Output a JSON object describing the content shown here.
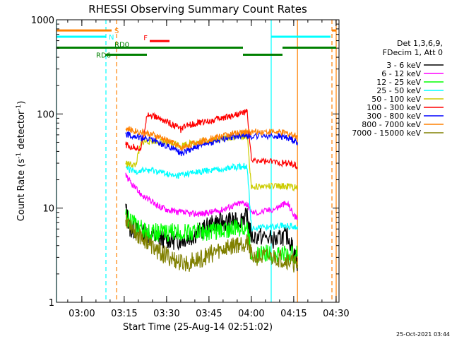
{
  "chart_data": {
    "type": "line",
    "title": "RHESSI Observing Summary Count Rates",
    "xlabel": "Start Time (25-Aug-14 02:51:02)",
    "ylabel_main": "Count Rate (s",
    "ylabel_sup1": "-1",
    "ylabel_mid": " detector",
    "ylabel_sup2": "-1",
    "ylabel_end": ")",
    "yscale": "log",
    "ylim": [
      1,
      1000
    ],
    "xlim_minutes": [
      0,
      100
    ],
    "x_ticks": [
      {
        "label": "03:00",
        "minutes": 8.97
      },
      {
        "label": "03:15",
        "minutes": 23.97
      },
      {
        "label": "03:30",
        "minutes": 38.97
      },
      {
        "label": "03:45",
        "minutes": 53.97
      },
      {
        "label": "04:00",
        "minutes": 68.97
      },
      {
        "label": "04:15",
        "minutes": 83.97
      },
      {
        "label": "04:30",
        "minutes": 98.97
      }
    ],
    "y_ticks": [
      {
        "label": "1",
        "value": 1
      },
      {
        "label": "10",
        "value": 10
      },
      {
        "label": "100",
        "value": 100
      },
      {
        "label": "1000",
        "value": 1000
      }
    ],
    "legend_header": [
      "Det 1,3,6,9,",
      "FDecim 1, Att 0"
    ],
    "legend_placement": "right",
    "footer_date": "25-Oct-2021 03:44",
    "series": [
      {
        "name": "3 - 6 keV",
        "color": "#000000",
        "x": [
          24.5,
          26,
          28,
          30,
          32,
          34,
          36,
          38,
          40,
          42,
          44,
          46,
          48,
          50,
          52,
          54,
          56,
          58,
          60,
          62,
          64,
          66,
          67.5,
          69,
          72,
          75,
          78,
          80,
          82,
          84,
          85.3
        ],
        "y": [
          10,
          6,
          5.8,
          5.5,
          5.2,
          5,
          4.8,
          4.7,
          4.6,
          4.5,
          4.6,
          4.8,
          5,
          5.5,
          6,
          6.5,
          7,
          7.2,
          7,
          7.5,
          7,
          8,
          8,
          5,
          5,
          4.8,
          4.5,
          5,
          5,
          3.5,
          2.5
        ]
      },
      {
        "name": "6 - 12 keV",
        "color": "#ff00ff",
        "x": [
          24.5,
          26,
          28,
          30,
          32,
          34,
          36,
          38,
          40,
          42,
          44,
          46,
          48,
          50,
          52,
          54,
          56,
          58,
          60,
          62,
          64,
          66,
          67.5,
          69,
          72,
          75,
          78,
          80,
          82,
          84,
          85.3
        ],
        "y": [
          23,
          19,
          16,
          14,
          12.5,
          11.5,
          10.5,
          10,
          9.5,
          9.2,
          9,
          8.8,
          8.7,
          8.7,
          8.8,
          9,
          9.2,
          9.5,
          10,
          10.5,
          11,
          11.5,
          11,
          9,
          9,
          9.5,
          10,
          11,
          11,
          8.5,
          7.5
        ]
      },
      {
        "name": "12 - 25 keV",
        "color": "#00ff00",
        "x": [
          24.5,
          26,
          28,
          30,
          32,
          34,
          36,
          38,
          40,
          42,
          44,
          46,
          48,
          50,
          52,
          54,
          56,
          58,
          60,
          62,
          64,
          66,
          67.5,
          69,
          72,
          75,
          78,
          80,
          82,
          84,
          85.3
        ],
        "y": [
          8,
          7.5,
          6.5,
          6,
          5.6,
          5.5,
          5.5,
          5.5,
          5.5,
          5.5,
          5.5,
          5.5,
          5.6,
          5.6,
          5.6,
          5.6,
          5.7,
          5.8,
          6,
          6,
          6.2,
          6.3,
          6.3,
          3.3,
          3.3,
          3.3,
          3.3,
          3.3,
          3.2,
          3.2,
          3.2
        ]
      },
      {
        "name": "25 - 50 keV",
        "color": "#00ffff",
        "x": [
          24.5,
          26,
          28,
          30,
          32,
          34,
          36,
          38,
          40,
          42,
          44,
          46,
          48,
          50,
          52,
          54,
          56,
          58,
          60,
          62,
          64,
          66,
          67.5,
          69,
          72,
          75,
          78,
          80,
          82,
          84,
          85.3
        ],
        "y": [
          27,
          25,
          24.5,
          25,
          25.5,
          25,
          24.5,
          23.5,
          22.5,
          21.5,
          22.5,
          23,
          23.5,
          24,
          24.5,
          25,
          25.5,
          26,
          26.5,
          27,
          27.5,
          28,
          28,
          6.2,
          6.2,
          6.3,
          6.4,
          6.5,
          6.4,
          6.4,
          6.4
        ]
      },
      {
        "name": "50 - 100 keV",
        "color": "#cccc00",
        "x": [
          24.5,
          26,
          28,
          30,
          32,
          34,
          36,
          38,
          40,
          42,
          44,
          46,
          48,
          50,
          52,
          54,
          56,
          58,
          60,
          62,
          64,
          66,
          67.5,
          69,
          72,
          75,
          78,
          80,
          82,
          84,
          85.3
        ],
        "y": [
          30,
          29,
          28.5,
          50,
          51,
          51.5,
          51,
          50,
          49,
          48.5,
          46,
          48,
          49,
          50,
          51,
          52,
          53,
          54,
          55,
          56,
          57,
          58,
          58,
          17,
          17,
          17,
          17,
          17,
          17,
          16.5,
          16.5
        ]
      },
      {
        "name": "100 - 300 keV",
        "color": "#ff0000",
        "x": [
          24.5,
          26,
          28,
          30,
          32,
          34,
          36,
          38,
          40,
          42,
          44,
          46,
          48,
          50,
          52,
          54,
          56,
          58,
          60,
          62,
          64,
          66,
          67.5,
          69,
          72,
          75,
          78,
          80,
          82,
          84,
          85.3
        ],
        "y": [
          47,
          45,
          44,
          42,
          100,
          95,
          90,
          85,
          80,
          75,
          68,
          75,
          78,
          80,
          82,
          84,
          87,
          90,
          93,
          96,
          100,
          103,
          105,
          32,
          32,
          31,
          31,
          30,
          30,
          29,
          27
        ]
      },
      {
        "name": "300 - 800 keV",
        "color": "#0000ff",
        "x": [
          24.5,
          26,
          28,
          30,
          32,
          34,
          36,
          38,
          40,
          42,
          44,
          46,
          48,
          50,
          52,
          54,
          56,
          58,
          60,
          62,
          64,
          66,
          67.5,
          69,
          72,
          75,
          78,
          80,
          82,
          84,
          85.3
        ],
        "y": [
          62,
          60,
          58,
          55,
          55,
          53,
          50,
          47,
          45,
          42,
          38,
          41,
          43,
          45,
          47,
          49,
          51,
          53,
          55,
          57,
          58,
          60,
          60,
          58,
          59,
          59,
          58,
          57,
          56,
          53,
          50
        ]
      },
      {
        "name": "800 - 7000 keV",
        "color": "#ff8000",
        "x": [
          24.5,
          26,
          28,
          30,
          32,
          34,
          36,
          38,
          40,
          42,
          44,
          46,
          48,
          50,
          52,
          54,
          56,
          58,
          60,
          62,
          64,
          66,
          67.5,
          69,
          72,
          75,
          78,
          80,
          82,
          84,
          85.3
        ],
        "y": [
          70,
          68,
          66,
          64,
          62,
          60,
          57,
          54,
          51,
          48,
          43,
          46,
          48,
          50,
          52,
          54,
          56,
          58,
          60,
          61,
          62,
          64,
          65,
          64,
          65,
          65,
          64,
          63,
          62,
          60,
          57
        ]
      },
      {
        "name": "7000 - 15000 keV",
        "color": "#808000",
        "x": [
          24.5,
          26,
          28,
          30,
          32,
          34,
          36,
          38,
          40,
          42,
          44,
          46,
          48,
          50,
          52,
          54,
          56,
          58,
          60,
          62,
          64,
          66,
          67.5,
          69,
          72,
          75,
          78,
          80,
          82,
          84,
          85.3
        ],
        "y": [
          8,
          7,
          5.5,
          5,
          4.5,
          3.8,
          3.5,
          3.2,
          3,
          2.8,
          2.6,
          2.6,
          2.7,
          2.8,
          3,
          3.2,
          3.4,
          3.6,
          3.8,
          4,
          4.2,
          4.3,
          4.3,
          3.1,
          3,
          3,
          3,
          2.9,
          2.8,
          2.6,
          2.5
        ]
      }
    ],
    "flags": [
      {
        "label": "S",
        "color": "#ff8000",
        "y": 770,
        "segments": [
          [
            0,
            19.5
          ],
          [
            97.5,
            99
          ]
        ]
      },
      {
        "label": "N",
        "color": "#00ffff",
        "y": 660,
        "segments": [
          [
            0,
            17.5
          ],
          [
            76,
            97
          ]
        ]
      },
      {
        "label": "F",
        "color": "#ff0000",
        "y": 595,
        "segments": [
          [
            33,
            40
          ]
        ]
      },
      {
        "label": "RD0",
        "color": "#008000",
        "y": 505,
        "segments": [
          [
            0,
            66
          ],
          [
            80,
            99
          ]
        ]
      },
      {
        "label": "RD6",
        "color": "#008000",
        "y": 425,
        "segments": [
          [
            17.5,
            32
          ],
          [
            66,
            80
          ]
        ]
      }
    ],
    "vlines": [
      {
        "color": "#00ffff",
        "minutes": 0,
        "style": "solid"
      },
      {
        "color": "#00ffff",
        "minutes": 17.5,
        "style": "dashed"
      },
      {
        "color": "#ff8000",
        "minutes": 21.3,
        "style": "dashed"
      },
      {
        "color": "#00ffff",
        "minutes": 76.0,
        "style": "solid"
      },
      {
        "color": "#ff8000",
        "minutes": 85.3,
        "style": "solid"
      },
      {
        "color": "#ff8000",
        "minutes": 97.5,
        "style": "dashed"
      },
      {
        "color": "#ff8000",
        "minutes": 99.0,
        "style": "solid"
      }
    ]
  }
}
